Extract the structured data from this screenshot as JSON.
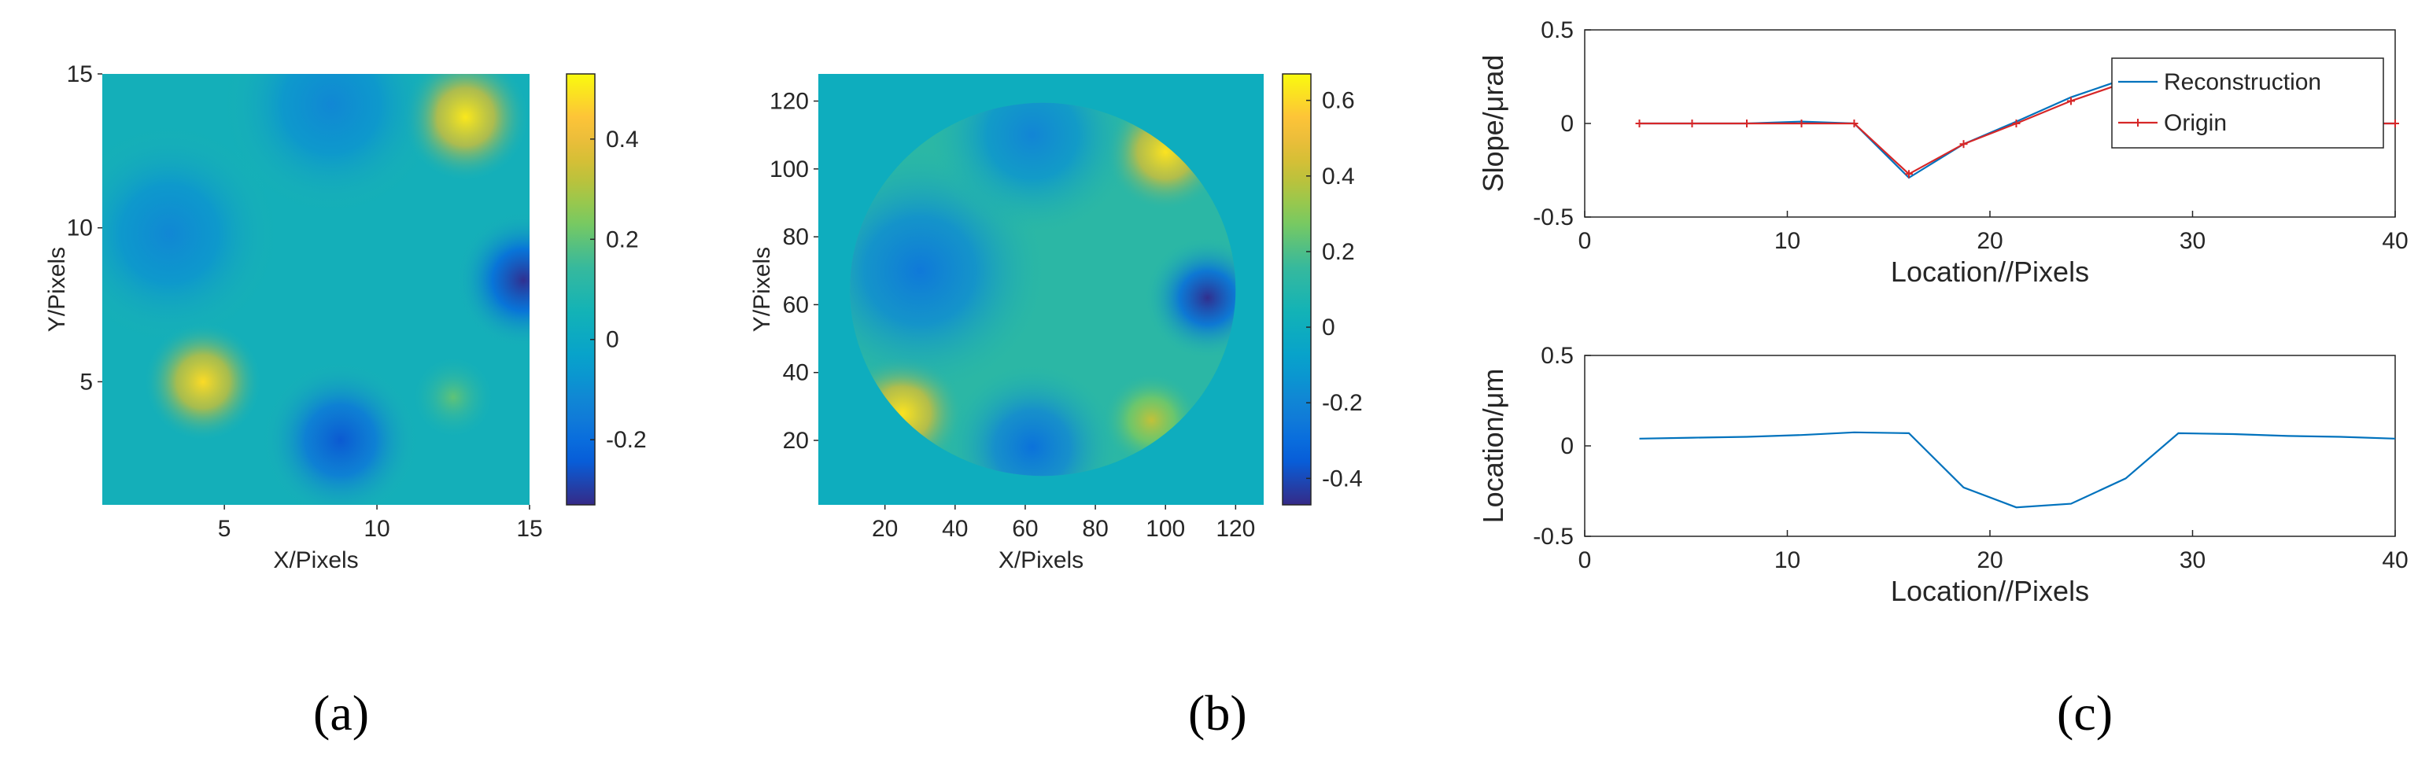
{
  "panel_labels": [
    "(a)",
    "(b)",
    "(c)"
  ],
  "chart_data": [
    {
      "id": "a",
      "type": "heatmap",
      "xlabel": "X/Pixels",
      "ylabel": "Y/Pixels",
      "xlim": [
        1,
        15
      ],
      "ylim": [
        1,
        15
      ],
      "xticks": [
        5,
        10,
        15
      ],
      "yticks": [
        5,
        10,
        15
      ],
      "colorbar": {
        "limits": [
          -0.33,
          0.53
        ],
        "ticks": [
          -0.2,
          0,
          0.2,
          0.4
        ],
        "tick_labels": [
          "-0.2",
          "0",
          "0.2",
          "0.4"
        ]
      },
      "features": [
        {
          "x": 12.9,
          "y": 13.6,
          "value": 0.5,
          "spread": 1.3
        },
        {
          "x": 4.3,
          "y": 5.0,
          "value": 0.48,
          "spread": 1.2
        },
        {
          "x": 14.8,
          "y": 8.3,
          "value": -0.32,
          "spread": 1.4
        },
        {
          "x": 8.8,
          "y": 3.1,
          "value": -0.25,
          "spread": 1.6
        },
        {
          "x": 3.2,
          "y": 9.8,
          "value": -0.12,
          "spread": 2.2
        },
        {
          "x": 8.5,
          "y": 14.0,
          "value": -0.12,
          "spread": 2.2
        },
        {
          "x": 12.5,
          "y": 4.5,
          "value": 0.2,
          "spread": 0.8
        }
      ]
    },
    {
      "id": "b",
      "type": "heatmap",
      "xlabel": "X/Pixels",
      "ylabel": "Y/Pixels",
      "xlim": [
        1,
        128
      ],
      "ylim": [
        1,
        128
      ],
      "xticks": [
        20,
        40,
        60,
        80,
        100,
        120
      ],
      "yticks": [
        20,
        40,
        60,
        80,
        100,
        120
      ],
      "aperture": {
        "cx": 65,
        "cy": 64.5,
        "r": 55
      },
      "colorbar": {
        "limits": [
          -0.47,
          0.67
        ],
        "ticks": [
          -0.4,
          -0.2,
          0,
          0.2,
          0.4,
          0.6
        ],
        "tick_labels": [
          "-0.4",
          "-0.2",
          "0",
          "0.2",
          "0.4",
          "0.6"
        ]
      },
      "features": [
        {
          "x": 100,
          "y": 105,
          "value": 0.62,
          "spread": 11
        },
        {
          "x": 25,
          "y": 28,
          "value": 0.62,
          "spread": 11
        },
        {
          "x": 112,
          "y": 62,
          "value": -0.46,
          "spread": 11
        },
        {
          "x": 30,
          "y": 70,
          "value": -0.25,
          "spread": 22
        },
        {
          "x": 62,
          "y": 18,
          "value": -0.28,
          "spread": 15
        },
        {
          "x": 62,
          "y": 110,
          "value": -0.2,
          "spread": 18
        },
        {
          "x": 96,
          "y": 26,
          "value": 0.4,
          "spread": 9
        }
      ]
    },
    {
      "id": "c-top",
      "type": "line",
      "xlabel": "Location//Pixels",
      "ylabel": "Slope/μrad",
      "xlim": [
        0,
        40
      ],
      "ylim": [
        -0.5,
        0.5
      ],
      "xticks": [
        0,
        10,
        20,
        30,
        40
      ],
      "yticks": [
        -0.5,
        0,
        0.5
      ],
      "ytick_labels": [
        "-0.5",
        "0",
        "0.5"
      ],
      "legend": "top-right",
      "series": [
        {
          "name": "Reconstruction",
          "color": "#0072BD",
          "x": [
            2.7,
            5.3,
            8.0,
            10.7,
            13.3,
            16.0,
            18.7,
            21.3,
            24.0,
            26.7,
            29.3,
            32.0,
            34.7,
            37.3,
            40.0
          ],
          "y": [
            0.0,
            0.0,
            0.0,
            0.01,
            0.0,
            -0.29,
            -0.11,
            0.01,
            0.14,
            0.24,
            0.14,
            0.0,
            0.0,
            0.0,
            0.0
          ]
        },
        {
          "name": "Origin",
          "color": "#D62728",
          "x": [
            2.7,
            5.3,
            8.0,
            10.7,
            13.3,
            16.0,
            18.7,
            21.3,
            24.0,
            26.7,
            29.3,
            32.0,
            34.7,
            37.3,
            40.0
          ],
          "y": [
            0.0,
            0.0,
            0.0,
            0.0,
            0.0,
            -0.27,
            -0.11,
            0.0,
            0.12,
            0.22,
            0.12,
            0.0,
            0.0,
            0.0,
            0.0
          ]
        }
      ]
    },
    {
      "id": "c-bottom",
      "type": "line",
      "xlabel": "Location//Pixels",
      "ylabel": "Location/μm",
      "xlim": [
        0,
        40
      ],
      "ylim": [
        -0.5,
        0.5
      ],
      "xticks": [
        0,
        10,
        20,
        30,
        40
      ],
      "yticks": [
        -0.5,
        0,
        0.5
      ],
      "ytick_labels": [
        "-0.5",
        "0",
        "0.5"
      ],
      "series": [
        {
          "color": "#0072BD",
          "x": [
            2.7,
            5.3,
            8.0,
            10.7,
            13.3,
            16.0,
            18.7,
            21.3,
            24.0,
            26.7,
            29.3,
            32.0,
            34.7,
            37.3,
            40.0
          ],
          "y": [
            0.04,
            0.045,
            0.05,
            0.06,
            0.075,
            0.07,
            -0.23,
            -0.34,
            -0.32,
            -0.18,
            0.07,
            0.065,
            0.055,
            0.05,
            0.04
          ]
        }
      ]
    }
  ]
}
